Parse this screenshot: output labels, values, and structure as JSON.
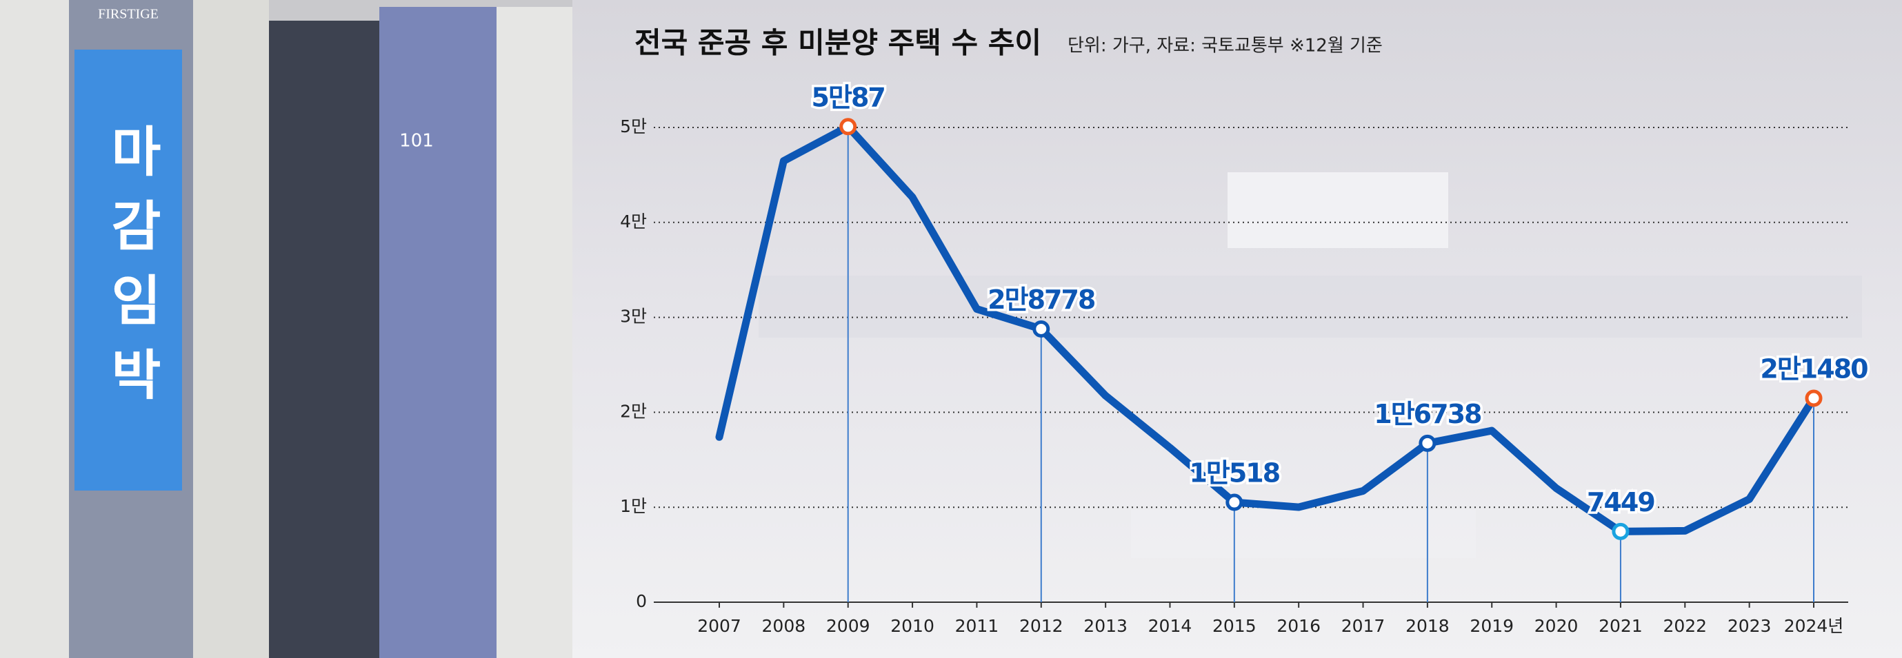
{
  "photo": {
    "banner": "마감임박",
    "sign": "FIRSTIGE",
    "building_number": "101"
  },
  "chart_data": {
    "type": "line",
    "title": "전국 준공 후 미분양 주택 수 추이",
    "subtitle": "단위: 가구, 자료: 국토교통부 ※12월 기준",
    "categories": [
      "2007",
      "2008",
      "2009",
      "2010",
      "2011",
      "2012",
      "2013",
      "2014",
      "2015",
      "2016",
      "2017",
      "2018",
      "2019",
      "2020",
      "2021",
      "2022",
      "2023",
      "2024년"
    ],
    "series": [
      {
        "name": "준공 후 미분양 주택 수",
        "color": "#0d57b5",
        "values": [
          17395,
          46476,
          50087,
          42655,
          30881,
          28778,
          21751,
          16267,
          10518,
          10011,
          11720,
          16738,
          18065,
          12006,
          7449,
          7518,
          10857,
          21480
        ],
        "value_labels": [
          null,
          null,
          "5만87",
          null,
          null,
          "2만8778",
          null,
          null,
          "1만518",
          null,
          null,
          "1만6738",
          null,
          null,
          "7449",
          null,
          null,
          "2만1480"
        ],
        "marker_colors": [
          null,
          null,
          "#f05a1e",
          null,
          null,
          "#0d57b5",
          null,
          null,
          "#0d57b5",
          null,
          null,
          "#0d57b5",
          null,
          null,
          "#1aa3e0",
          null,
          null,
          "#f05a1e"
        ]
      }
    ],
    "ylim": [
      0,
      50000
    ],
    "yticks": [
      0,
      {
        "value": 10000,
        "label": "1만"
      },
      {
        "value": 20000,
        "label": "2만"
      },
      {
        "value": 30000,
        "label": "3만"
      },
      {
        "value": 40000,
        "label": "4만"
      },
      {
        "value": 50000,
        "label": "5만"
      }
    ],
    "grid": true
  }
}
